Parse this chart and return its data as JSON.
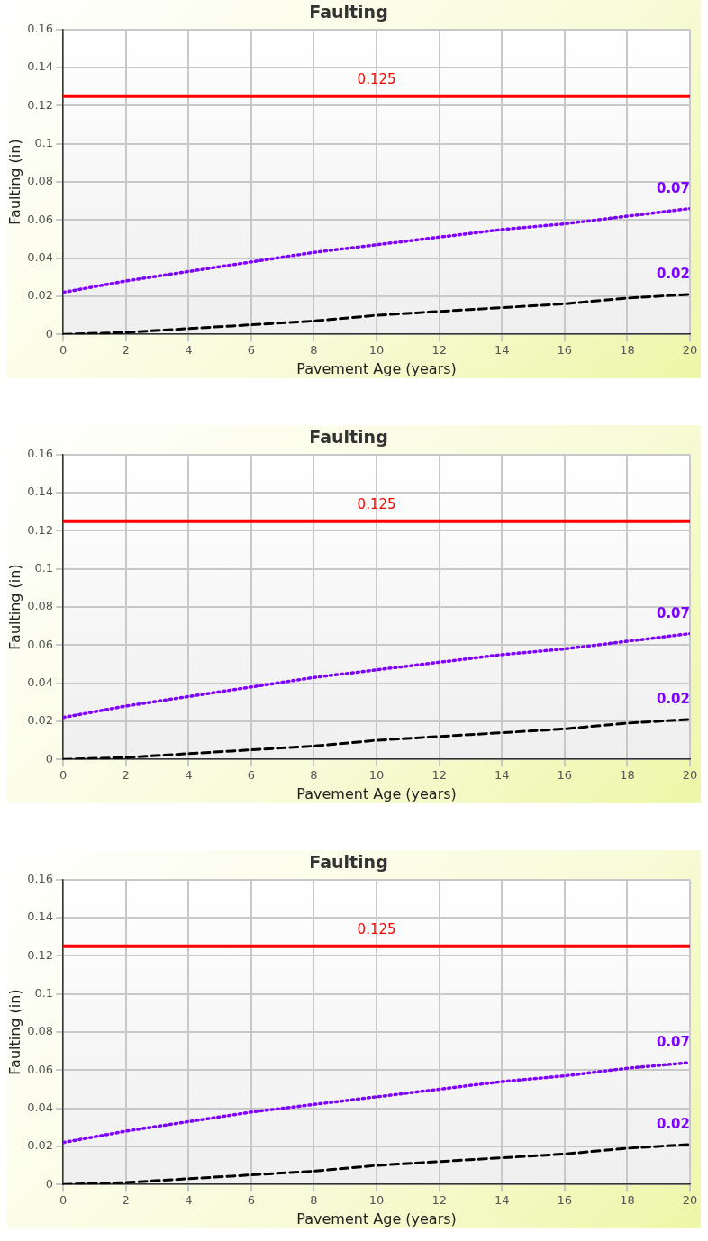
{
  "chart_data": [
    {
      "type": "line",
      "title": "Faulting",
      "xlabel": "Pavement Age (years)",
      "ylabel": "Faulting (in)",
      "x": [
        0,
        2,
        4,
        6,
        8,
        10,
        12,
        14,
        16,
        18,
        20
      ],
      "series": [
        {
          "color": "#8000ff",
          "line_style": "dotted",
          "values": [
            0.022,
            0.028,
            0.033,
            0.038,
            0.043,
            0.047,
            0.051,
            0.055,
            0.058,
            0.062,
            0.066
          ]
        },
        {
          "color": "#000000",
          "line_style": "dashed",
          "values": [
            0,
            0.001,
            0.003,
            0.005,
            0.007,
            0.01,
            0.012,
            0.014,
            0.016,
            0.019,
            0.021
          ]
        }
      ],
      "ref_lines": [
        {
          "axis": "y",
          "value": 0.125,
          "label": "0.125",
          "color": "#ff0000"
        }
      ],
      "annotations": [
        "0.07",
        "0.02"
      ],
      "xlim": [
        0,
        20
      ],
      "xticks": [
        0,
        2,
        4,
        6,
        8,
        10,
        12,
        14,
        16,
        18,
        20
      ],
      "ylim": [
        0,
        0.16
      ],
      "yticks": [
        0,
        0.02,
        0.04,
        0.06,
        0.08,
        0.1,
        0.12,
        0.14,
        0.16
      ],
      "grid": true,
      "legend": false,
      "marker": "none"
    },
    {
      "type": "line",
      "title": "Faulting",
      "xlabel": "Pavement Age (years)",
      "ylabel": "Faulting (in)",
      "x": [
        0,
        2,
        4,
        6,
        8,
        10,
        12,
        14,
        16,
        18,
        20
      ],
      "series": [
        {
          "color": "#8000ff",
          "line_style": "dotted",
          "values": [
            0.022,
            0.028,
            0.033,
            0.038,
            0.043,
            0.047,
            0.051,
            0.055,
            0.058,
            0.062,
            0.066
          ]
        },
        {
          "color": "#000000",
          "line_style": "dashed",
          "values": [
            0,
            0.001,
            0.003,
            0.005,
            0.007,
            0.01,
            0.012,
            0.014,
            0.016,
            0.019,
            0.021
          ]
        }
      ],
      "ref_lines": [
        {
          "axis": "y",
          "value": 0.125,
          "label": "0.125",
          "color": "#ff0000"
        }
      ],
      "annotations": [
        "0.07",
        "0.02"
      ],
      "xlim": [
        0,
        20
      ],
      "xticks": [
        0,
        2,
        4,
        6,
        8,
        10,
        12,
        14,
        16,
        18,
        20
      ],
      "ylim": [
        0,
        0.16
      ],
      "yticks": [
        0,
        0.02,
        0.04,
        0.06,
        0.08,
        0.1,
        0.12,
        0.14,
        0.16
      ],
      "grid": true,
      "legend": false,
      "marker": "none"
    },
    {
      "type": "line",
      "title": "Faulting",
      "xlabel": "Pavement Age (years)",
      "ylabel": "Faulting (in)",
      "x": [
        0,
        2,
        4,
        6,
        8,
        10,
        12,
        14,
        16,
        18,
        20
      ],
      "series": [
        {
          "color": "#8000ff",
          "line_style": "dotted",
          "values": [
            0.022,
            0.028,
            0.033,
            0.038,
            0.042,
            0.046,
            0.05,
            0.054,
            0.057,
            0.061,
            0.064
          ]
        },
        {
          "color": "#000000",
          "line_style": "dashed",
          "values": [
            0,
            0.001,
            0.003,
            0.005,
            0.007,
            0.01,
            0.012,
            0.014,
            0.016,
            0.019,
            0.021
          ]
        }
      ],
      "ref_lines": [
        {
          "axis": "y",
          "value": 0.125,
          "label": "0.125",
          "color": "#ff0000"
        }
      ],
      "annotations": [
        "0.07",
        "0.02"
      ],
      "xlim": [
        0,
        20
      ],
      "xticks": [
        0,
        2,
        4,
        6,
        8,
        10,
        12,
        14,
        16,
        18,
        20
      ],
      "ylim": [
        0,
        0.16
      ],
      "yticks": [
        0,
        0.02,
        0.04,
        0.06,
        0.08,
        0.1,
        0.12,
        0.14,
        0.16
      ],
      "grid": true,
      "legend": false,
      "marker": "none"
    }
  ]
}
